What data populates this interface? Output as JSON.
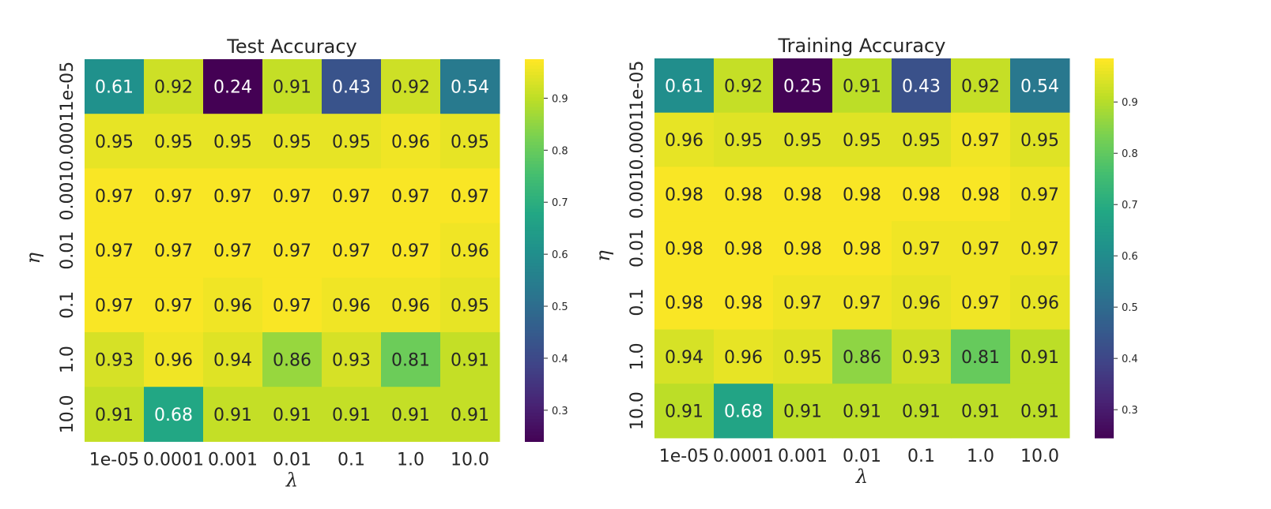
{
  "chart_data": [
    {
      "type": "heatmap",
      "title": "Test Accuracy",
      "xlabel": "λ",
      "ylabel": "η",
      "x_categories": [
        "1e-05",
        "0.0001",
        "0.001",
        "0.01",
        "0.1",
        "1.0",
        "10.0"
      ],
      "y_categories": [
        "1e-05",
        "0.0001",
        "0.001",
        "0.01",
        "0.1",
        "1.0",
        "10.0"
      ],
      "values": [
        [
          0.61,
          0.92,
          0.24,
          0.91,
          0.43,
          0.92,
          0.54
        ],
        [
          0.95,
          0.95,
          0.95,
          0.95,
          0.95,
          0.96,
          0.95
        ],
        [
          0.97,
          0.97,
          0.97,
          0.97,
          0.97,
          0.97,
          0.97
        ],
        [
          0.97,
          0.97,
          0.97,
          0.97,
          0.97,
          0.97,
          0.96
        ],
        [
          0.97,
          0.97,
          0.96,
          0.97,
          0.96,
          0.96,
          0.95
        ],
        [
          0.93,
          0.96,
          0.94,
          0.86,
          0.93,
          0.81,
          0.91
        ],
        [
          0.91,
          0.68,
          0.91,
          0.91,
          0.91,
          0.91,
          0.91
        ]
      ],
      "colormap": "viridis",
      "color_range": [
        0.24,
        0.975
      ],
      "colorbar_ticks": [
        "0.3",
        "0.4",
        "0.5",
        "0.6",
        "0.7",
        "0.8",
        "0.9"
      ]
    },
    {
      "type": "heatmap",
      "title": "Training Accuracy",
      "xlabel": "λ",
      "ylabel": "η",
      "x_categories": [
        "1e-05",
        "0.0001",
        "0.001",
        "0.01",
        "0.1",
        "1.0",
        "10.0"
      ],
      "y_categories": [
        "1e-05",
        "0.0001",
        "0.001",
        "0.01",
        "0.1",
        "1.0",
        "10.0"
      ],
      "values": [
        [
          0.61,
          0.92,
          0.25,
          0.91,
          0.43,
          0.92,
          0.54
        ],
        [
          0.96,
          0.95,
          0.95,
          0.95,
          0.95,
          0.97,
          0.95
        ],
        [
          0.98,
          0.98,
          0.98,
          0.98,
          0.98,
          0.98,
          0.97
        ],
        [
          0.98,
          0.98,
          0.98,
          0.98,
          0.97,
          0.97,
          0.97
        ],
        [
          0.98,
          0.98,
          0.97,
          0.97,
          0.96,
          0.97,
          0.96
        ],
        [
          0.94,
          0.96,
          0.95,
          0.86,
          0.93,
          0.81,
          0.91
        ],
        [
          0.91,
          0.68,
          0.91,
          0.91,
          0.91,
          0.91,
          0.91
        ]
      ],
      "colormap": "viridis",
      "color_range": [
        0.245,
        0.985
      ],
      "colorbar_ticks": [
        "0.3",
        "0.4",
        "0.5",
        "0.6",
        "0.7",
        "0.8",
        "0.9"
      ]
    }
  ]
}
